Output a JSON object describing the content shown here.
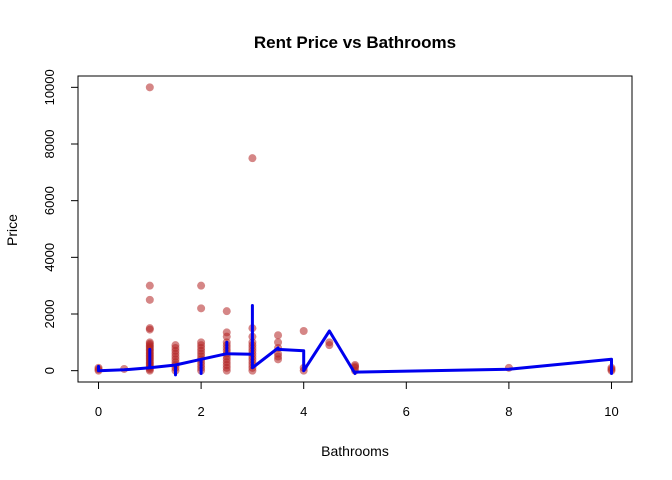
{
  "chart_data": {
    "type": "scatter",
    "title": "Rent Price vs Bathrooms",
    "xlabel": "Bathrooms",
    "ylabel": "Price",
    "xlim": [
      -0.4,
      10.4
    ],
    "ylim": [
      -400,
      10400
    ],
    "xticks": [
      0,
      2,
      4,
      6,
      8,
      10
    ],
    "yticks": [
      0,
      2000,
      4000,
      6000,
      8000,
      10000
    ],
    "grid": false,
    "legend": "none",
    "point_color": "#b22222",
    "line_color": "#0000ee",
    "points": [
      {
        "x": 0,
        "y": 0
      },
      {
        "x": 0,
        "y": 50
      },
      {
        "x": 0,
        "y": 100
      },
      {
        "x": 0.5,
        "y": 60
      },
      {
        "x": 1,
        "y": 0
      },
      {
        "x": 1,
        "y": 50
      },
      {
        "x": 1,
        "y": 100
      },
      {
        "x": 1,
        "y": 150
      },
      {
        "x": 1,
        "y": 200
      },
      {
        "x": 1,
        "y": 250
      },
      {
        "x": 1,
        "y": 300
      },
      {
        "x": 1,
        "y": 350
      },
      {
        "x": 1,
        "y": 400
      },
      {
        "x": 1,
        "y": 450
      },
      {
        "x": 1,
        "y": 500
      },
      {
        "x": 1,
        "y": 550
      },
      {
        "x": 1,
        "y": 600
      },
      {
        "x": 1,
        "y": 650
      },
      {
        "x": 1,
        "y": 700
      },
      {
        "x": 1,
        "y": 750
      },
      {
        "x": 1,
        "y": 800
      },
      {
        "x": 1,
        "y": 850
      },
      {
        "x": 1,
        "y": 900
      },
      {
        "x": 1,
        "y": 950
      },
      {
        "x": 1,
        "y": 1000
      },
      {
        "x": 1,
        "y": 1450
      },
      {
        "x": 1,
        "y": 1500
      },
      {
        "x": 1,
        "y": 2500
      },
      {
        "x": 1,
        "y": 3000
      },
      {
        "x": 1,
        "y": 10000
      },
      {
        "x": 1.5,
        "y": 0
      },
      {
        "x": 1.5,
        "y": 100
      },
      {
        "x": 1.5,
        "y": 200
      },
      {
        "x": 1.5,
        "y": 300
      },
      {
        "x": 1.5,
        "y": 400
      },
      {
        "x": 1.5,
        "y": 500
      },
      {
        "x": 1.5,
        "y": 600
      },
      {
        "x": 1.5,
        "y": 700
      },
      {
        "x": 1.5,
        "y": 800
      },
      {
        "x": 1.5,
        "y": 900
      },
      {
        "x": 2,
        "y": 0
      },
      {
        "x": 2,
        "y": 100
      },
      {
        "x": 2,
        "y": 200
      },
      {
        "x": 2,
        "y": 300
      },
      {
        "x": 2,
        "y": 400
      },
      {
        "x": 2,
        "y": 500
      },
      {
        "x": 2,
        "y": 600
      },
      {
        "x": 2,
        "y": 700
      },
      {
        "x": 2,
        "y": 800
      },
      {
        "x": 2,
        "y": 900
      },
      {
        "x": 2,
        "y": 1000
      },
      {
        "x": 2,
        "y": 2200
      },
      {
        "x": 2,
        "y": 3000
      },
      {
        "x": 2.5,
        "y": 0
      },
      {
        "x": 2.5,
        "y": 100
      },
      {
        "x": 2.5,
        "y": 200
      },
      {
        "x": 2.5,
        "y": 300
      },
      {
        "x": 2.5,
        "y": 400
      },
      {
        "x": 2.5,
        "y": 500
      },
      {
        "x": 2.5,
        "y": 600
      },
      {
        "x": 2.5,
        "y": 700
      },
      {
        "x": 2.5,
        "y": 800
      },
      {
        "x": 2.5,
        "y": 900
      },
      {
        "x": 2.5,
        "y": 1000
      },
      {
        "x": 2.5,
        "y": 1200
      },
      {
        "x": 2.5,
        "y": 1350
      },
      {
        "x": 2.5,
        "y": 2100
      },
      {
        "x": 3,
        "y": 0
      },
      {
        "x": 3,
        "y": 100
      },
      {
        "x": 3,
        "y": 200
      },
      {
        "x": 3,
        "y": 300
      },
      {
        "x": 3,
        "y": 400
      },
      {
        "x": 3,
        "y": 500
      },
      {
        "x": 3,
        "y": 600
      },
      {
        "x": 3,
        "y": 700
      },
      {
        "x": 3,
        "y": 800
      },
      {
        "x": 3,
        "y": 900
      },
      {
        "x": 3,
        "y": 1000
      },
      {
        "x": 3,
        "y": 1200
      },
      {
        "x": 3,
        "y": 1500
      },
      {
        "x": 3,
        "y": 7500
      },
      {
        "x": 3.5,
        "y": 400
      },
      {
        "x": 3.5,
        "y": 500
      },
      {
        "x": 3.5,
        "y": 600
      },
      {
        "x": 3.5,
        "y": 800
      },
      {
        "x": 3.5,
        "y": 1000
      },
      {
        "x": 3.5,
        "y": 1250
      },
      {
        "x": 4,
        "y": 0
      },
      {
        "x": 4,
        "y": 100
      },
      {
        "x": 4,
        "y": 1400
      },
      {
        "x": 4.5,
        "y": 900
      },
      {
        "x": 4.5,
        "y": 1000
      },
      {
        "x": 5,
        "y": 0
      },
      {
        "x": 5,
        "y": 100
      },
      {
        "x": 5,
        "y": 150
      },
      {
        "x": 5,
        "y": 200
      },
      {
        "x": 8,
        "y": 100
      },
      {
        "x": 10,
        "y": 0
      },
      {
        "x": 10,
        "y": 50
      },
      {
        "x": 10,
        "y": 100
      }
    ],
    "line": {
      "x": [
        0,
        0,
        0,
        0.5,
        1,
        1,
        1,
        1.5,
        1.5,
        1.5,
        2,
        2,
        2,
        2.5,
        2.5,
        2.5,
        3,
        3,
        3,
        3.5,
        3.5,
        4,
        4,
        4,
        4.5,
        4.5,
        5,
        5,
        8,
        10,
        10,
        10
      ],
      "y": [
        0,
        150,
        0,
        30,
        100,
        750,
        100,
        200,
        -150,
        200,
        400,
        -100,
        400,
        600,
        1000,
        600,
        580,
        2300,
        100,
        800,
        750,
        700,
        0,
        0,
        1400,
        1400,
        -100,
        -50,
        50,
        400,
        -100,
        400
      ]
    }
  }
}
